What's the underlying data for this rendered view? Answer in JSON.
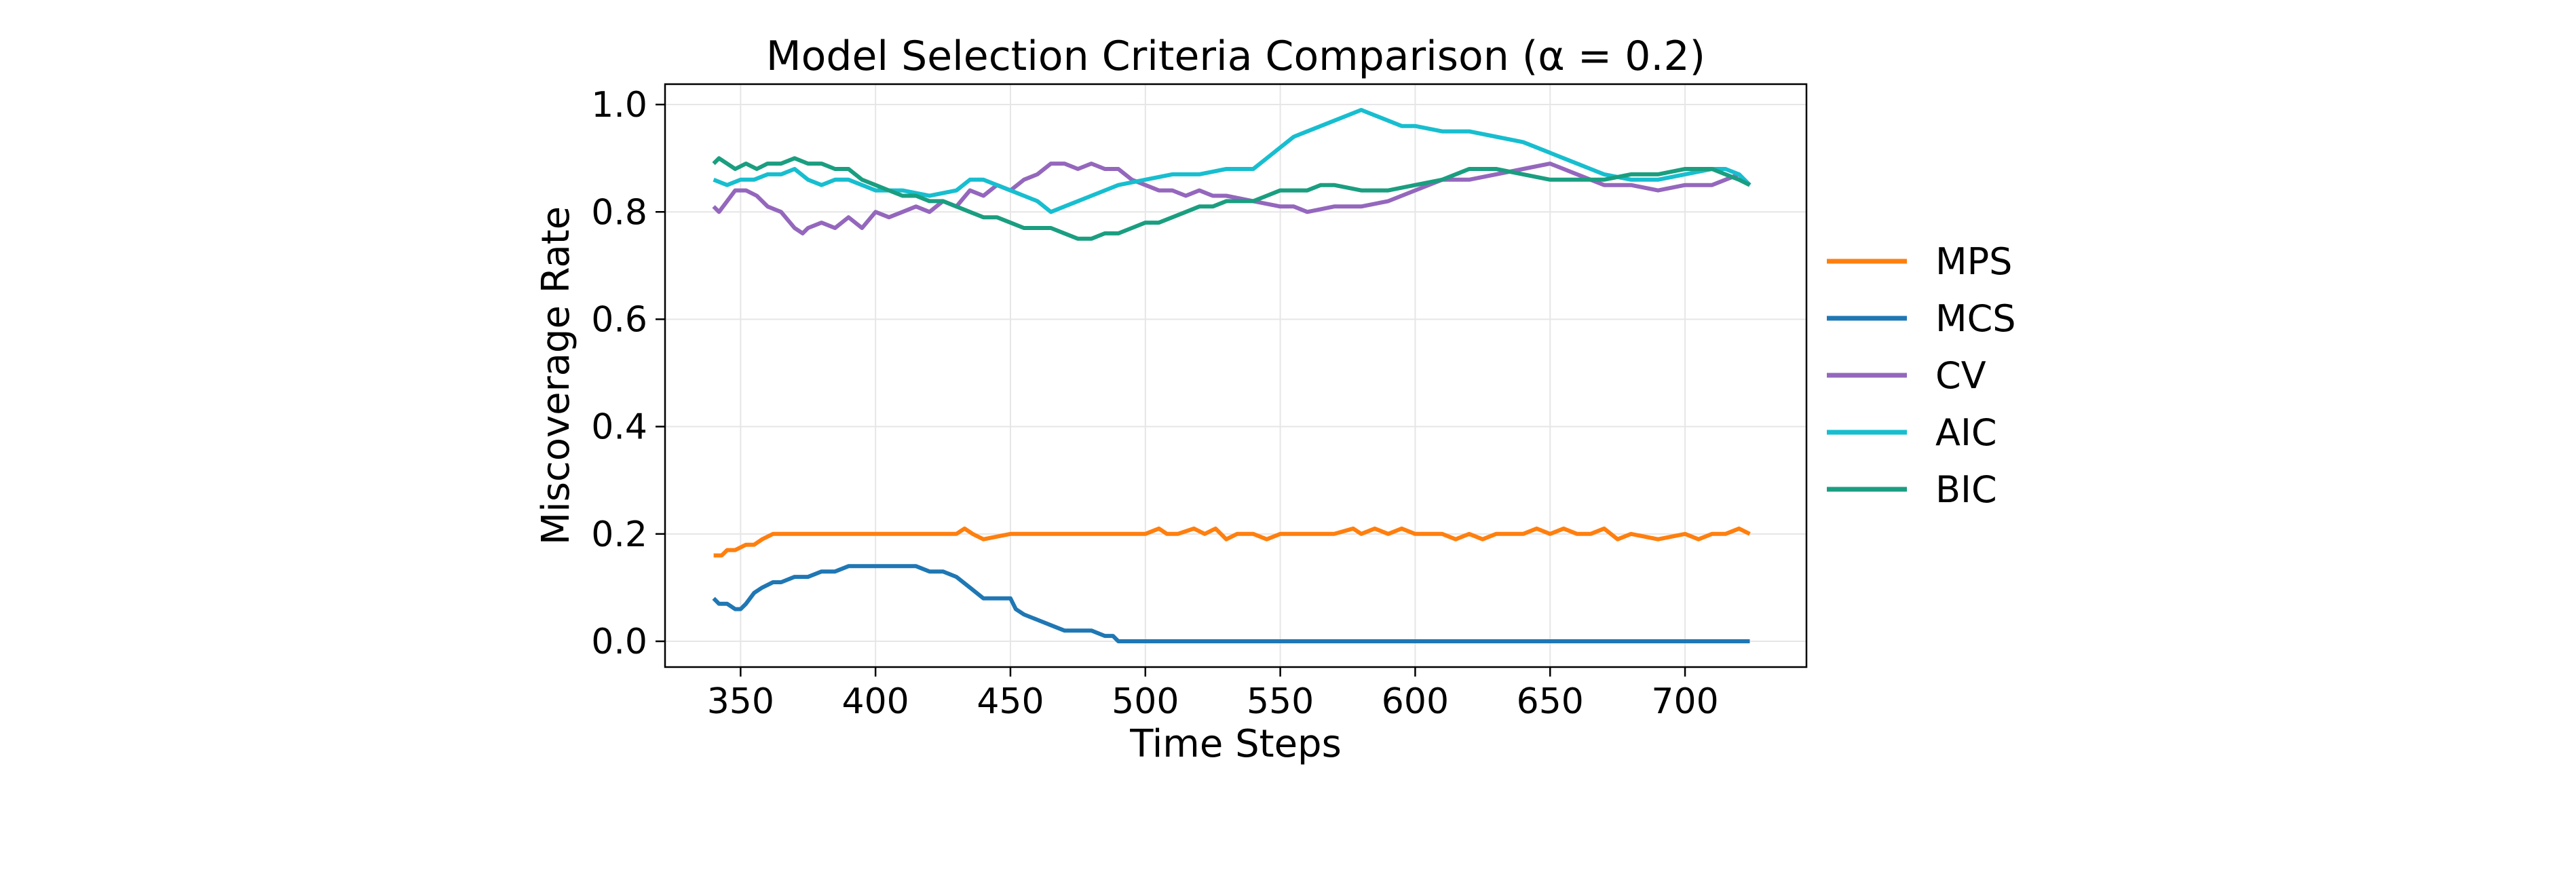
{
  "chart_data": {
    "type": "line",
    "title": "Model Selection Criteria Comparison  (α = 0.2)",
    "xlabel": "Time Steps",
    "ylabel": "Miscoverage Rate",
    "xlim": [
      322,
      745
    ],
    "ylim": [
      -0.048,
      1.038
    ],
    "xticks": [
      350,
      400,
      450,
      500,
      550,
      600,
      650,
      700
    ],
    "xtick_labels": [
      "350",
      "400",
      "450",
      "500",
      "550",
      "600",
      "650",
      "700"
    ],
    "yticks": [
      0.0,
      0.2,
      0.4,
      0.6,
      0.8,
      1.0
    ],
    "ytick_labels": [
      "0.0",
      "0.2",
      "0.4",
      "0.6",
      "0.8",
      "1.0"
    ],
    "grid": true,
    "legend_position": "right-outside",
    "series": [
      {
        "name": "MPS",
        "color": "#ff7f0e",
        "x": [
          340,
          343,
          345,
          348,
          352,
          355,
          358,
          362,
          365,
          370,
          380,
          400,
          420,
          430,
          433,
          436,
          440,
          450,
          460,
          480,
          500,
          505,
          508,
          512,
          518,
          522,
          526,
          530,
          534,
          540,
          545,
          550,
          560,
          570,
          577,
          580,
          585,
          590,
          595,
          600,
          610,
          615,
          620,
          625,
          630,
          640,
          645,
          650,
          655,
          660,
          665,
          670,
          675,
          680,
          690,
          700,
          705,
          710,
          715,
          720,
          724
        ],
        "y": [
          0.16,
          0.16,
          0.17,
          0.17,
          0.18,
          0.18,
          0.19,
          0.2,
          0.2,
          0.2,
          0.2,
          0.2,
          0.2,
          0.2,
          0.21,
          0.2,
          0.19,
          0.2,
          0.2,
          0.2,
          0.2,
          0.21,
          0.2,
          0.2,
          0.21,
          0.2,
          0.21,
          0.19,
          0.2,
          0.2,
          0.19,
          0.2,
          0.2,
          0.2,
          0.21,
          0.2,
          0.21,
          0.2,
          0.21,
          0.2,
          0.2,
          0.19,
          0.2,
          0.19,
          0.2,
          0.2,
          0.21,
          0.2,
          0.21,
          0.2,
          0.2,
          0.21,
          0.19,
          0.2,
          0.19,
          0.2,
          0.19,
          0.2,
          0.2,
          0.21,
          0.2
        ]
      },
      {
        "name": "MCS",
        "color": "#1f77b4",
        "x": [
          340,
          342,
          345,
          348,
          350,
          352,
          355,
          358,
          362,
          365,
          370,
          375,
          380,
          385,
          390,
          395,
          400,
          405,
          410,
          415,
          420,
          425,
          430,
          435,
          440,
          445,
          450,
          452,
          455,
          460,
          465,
          470,
          475,
          480,
          485,
          488,
          490,
          500,
          550,
          600,
          650,
          700,
          724
        ],
        "y": [
          0.08,
          0.07,
          0.07,
          0.06,
          0.06,
          0.07,
          0.09,
          0.1,
          0.11,
          0.11,
          0.12,
          0.12,
          0.13,
          0.13,
          0.14,
          0.14,
          0.14,
          0.14,
          0.14,
          0.14,
          0.13,
          0.13,
          0.12,
          0.1,
          0.08,
          0.08,
          0.08,
          0.06,
          0.05,
          0.04,
          0.03,
          0.02,
          0.02,
          0.02,
          0.01,
          0.01,
          0.0,
          0.0,
          0.0,
          0.0,
          0.0,
          0.0,
          0.0
        ]
      },
      {
        "name": "CV",
        "color": "#9467bd",
        "x": [
          340,
          342,
          345,
          348,
          352,
          356,
          360,
          365,
          370,
          373,
          375,
          380,
          385,
          390,
          395,
          400,
          405,
          410,
          415,
          420,
          425,
          430,
          435,
          440,
          445,
          450,
          455,
          460,
          465,
          470,
          475,
          480,
          485,
          490,
          495,
          500,
          505,
          510,
          515,
          520,
          525,
          530,
          540,
          550,
          555,
          560,
          570,
          580,
          590,
          600,
          605,
          610,
          620,
          630,
          640,
          650,
          655,
          660,
          665,
          670,
          680,
          690,
          700,
          710,
          715,
          720,
          724
        ],
        "y": [
          0.81,
          0.8,
          0.82,
          0.84,
          0.84,
          0.83,
          0.81,
          0.8,
          0.77,
          0.76,
          0.77,
          0.78,
          0.77,
          0.79,
          0.77,
          0.8,
          0.79,
          0.8,
          0.81,
          0.8,
          0.82,
          0.81,
          0.84,
          0.83,
          0.85,
          0.84,
          0.86,
          0.87,
          0.89,
          0.89,
          0.88,
          0.89,
          0.88,
          0.88,
          0.86,
          0.85,
          0.84,
          0.84,
          0.83,
          0.84,
          0.83,
          0.83,
          0.82,
          0.81,
          0.81,
          0.8,
          0.81,
          0.81,
          0.82,
          0.84,
          0.85,
          0.86,
          0.86,
          0.87,
          0.88,
          0.89,
          0.88,
          0.87,
          0.86,
          0.85,
          0.85,
          0.84,
          0.85,
          0.85,
          0.86,
          0.87,
          0.85
        ]
      },
      {
        "name": "AIC",
        "color": "#17becf",
        "x": [
          340,
          345,
          350,
          355,
          360,
          365,
          370,
          375,
          380,
          385,
          390,
          395,
          400,
          410,
          420,
          430,
          435,
          440,
          445,
          450,
          455,
          460,
          465,
          470,
          475,
          480,
          485,
          490,
          500,
          510,
          520,
          530,
          540,
          545,
          550,
          555,
          560,
          565,
          570,
          575,
          580,
          585,
          590,
          595,
          600,
          610,
          620,
          630,
          640,
          645,
          650,
          655,
          660,
          665,
          670,
          680,
          690,
          700,
          710,
          715,
          720,
          724
        ],
        "y": [
          0.86,
          0.85,
          0.86,
          0.86,
          0.87,
          0.87,
          0.88,
          0.86,
          0.85,
          0.86,
          0.86,
          0.85,
          0.84,
          0.84,
          0.83,
          0.84,
          0.86,
          0.86,
          0.85,
          0.84,
          0.83,
          0.82,
          0.8,
          0.81,
          0.82,
          0.83,
          0.84,
          0.85,
          0.86,
          0.87,
          0.87,
          0.88,
          0.88,
          0.9,
          0.92,
          0.94,
          0.95,
          0.96,
          0.97,
          0.98,
          0.99,
          0.98,
          0.97,
          0.96,
          0.96,
          0.95,
          0.95,
          0.94,
          0.93,
          0.92,
          0.91,
          0.9,
          0.89,
          0.88,
          0.87,
          0.86,
          0.86,
          0.87,
          0.88,
          0.88,
          0.87,
          0.85
        ]
      },
      {
        "name": "BIC",
        "color": "#1a9e80",
        "x": [
          340,
          342,
          345,
          348,
          352,
          356,
          360,
          365,
          370,
          375,
          380,
          385,
          390,
          395,
          400,
          405,
          410,
          415,
          420,
          425,
          430,
          435,
          440,
          445,
          450,
          455,
          460,
          465,
          470,
          475,
          480,
          485,
          490,
          495,
          500,
          505,
          510,
          515,
          520,
          525,
          530,
          535,
          540,
          545,
          550,
          555,
          560,
          565,
          570,
          580,
          590,
          600,
          610,
          620,
          630,
          640,
          650,
          660,
          670,
          680,
          690,
          700,
          710,
          715,
          720,
          724
        ],
        "y": [
          0.89,
          0.9,
          0.89,
          0.88,
          0.89,
          0.88,
          0.89,
          0.89,
          0.9,
          0.89,
          0.89,
          0.88,
          0.88,
          0.86,
          0.85,
          0.84,
          0.83,
          0.83,
          0.82,
          0.82,
          0.81,
          0.8,
          0.79,
          0.79,
          0.78,
          0.77,
          0.77,
          0.77,
          0.76,
          0.75,
          0.75,
          0.76,
          0.76,
          0.77,
          0.78,
          0.78,
          0.79,
          0.8,
          0.81,
          0.81,
          0.82,
          0.82,
          0.82,
          0.83,
          0.84,
          0.84,
          0.84,
          0.85,
          0.85,
          0.84,
          0.84,
          0.85,
          0.86,
          0.88,
          0.88,
          0.87,
          0.86,
          0.86,
          0.86,
          0.87,
          0.87,
          0.88,
          0.88,
          0.87,
          0.86,
          0.85
        ]
      }
    ]
  }
}
